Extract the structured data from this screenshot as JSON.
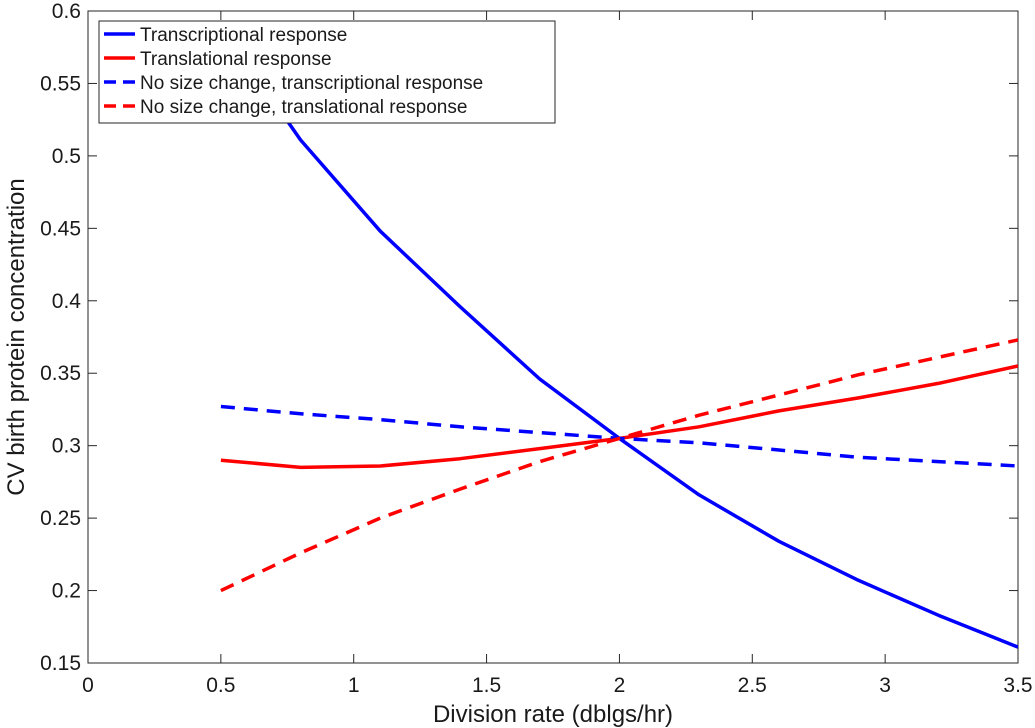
{
  "chart_data": {
    "type": "line",
    "xlabel": "Division rate (dblgs/hr)",
    "ylabel": "CV birth protein concentration",
    "xlim": [
      0,
      3.5
    ],
    "ylim": [
      0.15,
      0.6
    ],
    "xticks": [
      0,
      0.5,
      1,
      1.5,
      2,
      2.5,
      3,
      3.5
    ],
    "xtick_labels": [
      "0",
      "0.5",
      "1",
      "1.5",
      "2",
      "2.5",
      "3",
      "3.5"
    ],
    "yticks": [
      0.15,
      0.2,
      0.25,
      0.3,
      0.35,
      0.4,
      0.45,
      0.5,
      0.55,
      0.6
    ],
    "ytick_labels": [
      "0.15",
      "0.2",
      "0.25",
      "0.3",
      "0.35",
      "0.4",
      "0.45",
      "0.5",
      "0.55",
      "0.6"
    ],
    "grid": false,
    "legend_position": "top-left",
    "x": [
      0.5,
      0.8,
      1.1,
      1.4,
      1.7,
      2.0,
      2.3,
      2.6,
      2.9,
      3.2,
      3.5
    ],
    "series": [
      {
        "name": "Transcriptional response",
        "color": "#0000ff",
        "dash": "solid",
        "values": [
          0.59,
          0.511,
          0.448,
          0.396,
          0.346,
          0.305,
          0.266,
          0.234,
          0.207,
          0.183,
          0.161
        ]
      },
      {
        "name": "Translational response",
        "color": "#ff0000",
        "dash": "solid",
        "values": [
          0.29,
          0.285,
          0.286,
          0.291,
          0.298,
          0.305,
          0.313,
          0.324,
          0.333,
          0.343,
          0.355
        ]
      },
      {
        "name": "No size change, transcriptional response",
        "color": "#0000ff",
        "dash": "dashed",
        "values": [
          0.327,
          0.322,
          0.318,
          0.313,
          0.309,
          0.305,
          0.302,
          0.297,
          0.292,
          0.289,
          0.286
        ]
      },
      {
        "name": "No size change, translational response",
        "color": "#ff0000",
        "dash": "dashed",
        "values": [
          0.2,
          0.226,
          0.25,
          0.27,
          0.289,
          0.305,
          0.321,
          0.335,
          0.349,
          0.361,
          0.373
        ]
      }
    ]
  }
}
